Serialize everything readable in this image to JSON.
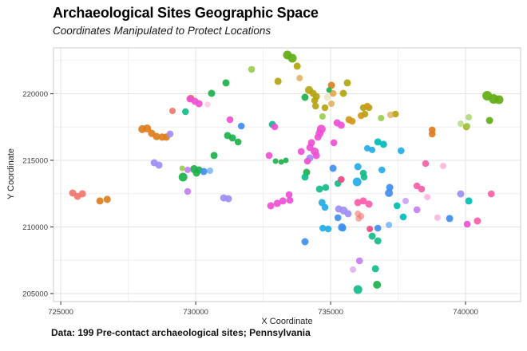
{
  "title": "Archaeological Sites Geographic Space",
  "subtitle": "Coordinates Manipulated to Protect Locations",
  "caption": "Data: 199 Pre-contact archaeological sites; Pennsylvania",
  "chart_data": {
    "type": "scatter",
    "title": "Archaeological Sites Geographic Space",
    "subtitle": "Coordinates Manipulated to Protect Locations",
    "xlabel": "X Coordinate",
    "ylabel": "Y Coordinate",
    "x_ticks": [
      725000,
      730000,
      735000,
      740000
    ],
    "y_ticks": [
      205000,
      210000,
      215000,
      220000
    ],
    "xlim": [
      724730,
      742040
    ],
    "ylim": [
      204400,
      223440
    ],
    "grid": "major-and-minor",
    "legend": "none",
    "point_count_note": "199 sites; overlapping points merge into blobs",
    "colors": {
      "sal": "#F3756C",
      "org": "#DD7E1E",
      "tan": "#DFA851",
      "gld": "#D2971B",
      "crm": "#F0DDB5",
      "olv": "#B3A40F",
      "ylg": "#5FAE12",
      "lgr": "#9ACD4E",
      "grn": "#1EB14B",
      "sea": "#12BC8C",
      "tea": "#00BDB6",
      "cyn": "#22ACE8",
      "blu": "#3F8EF0",
      "lbl": "#7FB9F7",
      "pur": "#9F8DF4",
      "lvi": "#C9A2F5",
      "orc": "#C77DF3",
      "plm": "#DDA5EC",
      "mag": "#EE4FD4",
      "pnk": "#FB5CA8",
      "cri": "#F2487F",
      "lpk": "#F9A8D8"
    },
    "points": [
      [
        728020,
        217340,
        "org",
        5
      ],
      [
        728200,
        217390,
        "org",
        5
      ],
      [
        728370,
        217030,
        "org",
        4.6
      ],
      [
        728550,
        216790,
        "org",
        4.6
      ],
      [
        728760,
        216740,
        "org",
        4.6
      ],
      [
        728910,
        216740,
        "org",
        4.6
      ],
      [
        729820,
        219670,
        "org",
        4.3
      ],
      [
        735030,
        220630,
        "org",
        4.5
      ],
      [
        738760,
        217280,
        "org",
        4.3
      ],
      [
        738760,
        216980,
        "org",
        4.3
      ],
      [
        726450,
        211950,
        "org",
        4.5
      ],
      [
        726720,
        212070,
        "org",
        4.5
      ],
      [
        725440,
        212540,
        "sal",
        4.5
      ],
      [
        725620,
        212300,
        "sal",
        4.5
      ],
      [
        725800,
        212490,
        "sal",
        4.5
      ],
      [
        729140,
        218710,
        "sal",
        4
      ],
      [
        736010,
        210990,
        "sal",
        4,
        0.6
      ],
      [
        736130,
        210810,
        "sal",
        4,
        0.6
      ],
      [
        736040,
        210630,
        "sal",
        4,
        0.6
      ],
      [
        733760,
        222070,
        "olv",
        4.5
      ],
      [
        733050,
        220930,
        "olv",
        4.5
      ],
      [
        734200,
        220270,
        "olv",
        5
      ],
      [
        734350,
        220030,
        "olv",
        4.5
      ],
      [
        734470,
        219790,
        "olv",
        4.5
      ],
      [
        734410,
        219490,
        "olv",
        4.3
      ],
      [
        735470,
        220030,
        "olv",
        4.5
      ],
      [
        735620,
        220810,
        "olv",
        4.5
      ],
      [
        736210,
        218950,
        "olv",
        4.3
      ],
      [
        736270,
        218470,
        "olv",
        4.3
      ],
      [
        734790,
        218950,
        "olv",
        4.3
      ],
      [
        734440,
        219070,
        "olv",
        4.3
      ],
      [
        736420,
        218950,
        "olv",
        4.3
      ],
      [
        737400,
        218470,
        "olv",
        4.3
      ],
      [
        740030,
        217510,
        "olv",
        4.3
      ],
      [
        733850,
        221170,
        "tan",
        4,
        0.8
      ],
      [
        735090,
        220030,
        "tan",
        4.3
      ],
      [
        735030,
        219250,
        "tan",
        4,
        0.8
      ],
      [
        737220,
        218410,
        "tan",
        4.3,
        0.75
      ],
      [
        735680,
        218050,
        "gld",
        4.5
      ],
      [
        735800,
        217930,
        "gld",
        4.3
      ],
      [
        736130,
        218350,
        "gld",
        4.3
      ],
      [
        736360,
        219070,
        "gld",
        4.3
      ],
      [
        734880,
        219730,
        "crm",
        4.3,
        0.75
      ],
      [
        733400,
        222900,
        "ylg",
        5.5
      ],
      [
        733580,
        222660,
        "ylg",
        5.5
      ],
      [
        740800,
        219850,
        "ylg",
        6
      ],
      [
        741040,
        219610,
        "ylg",
        6
      ],
      [
        741240,
        219550,
        "ylg",
        5.5
      ],
      [
        740890,
        217990,
        "ylg",
        4.5
      ],
      [
        732070,
        221830,
        "lgr",
        4.3
      ],
      [
        740120,
        218230,
        "lgr",
        4,
        0.7
      ],
      [
        739820,
        217750,
        "lgr",
        4,
        0.6
      ],
      [
        734700,
        218290,
        "lgr",
        4
      ],
      [
        736870,
        218170,
        "lgr",
        4
      ],
      [
        729500,
        214400,
        "lgr",
        3.5
      ],
      [
        740060,
        217570,
        "lgr",
        4,
        0.8
      ],
      [
        730590,
        220030,
        "grn",
        4.5
      ],
      [
        731120,
        220810,
        "grn",
        4.5
      ],
      [
        734050,
        219730,
        "grn",
        4.5
      ],
      [
        734940,
        220270,
        "grn",
        3.5
      ],
      [
        731180,
        216860,
        "grn",
        4.5
      ],
      [
        731360,
        216680,
        "grn",
        4.5
      ],
      [
        731570,
        216380,
        "grn",
        4.3
      ],
      [
        730680,
        215360,
        "grn",
        4.5
      ],
      [
        732960,
        214940,
        "grn",
        3.5
      ],
      [
        733170,
        214880,
        "grn",
        3.5
      ],
      [
        733340,
        215000,
        "grn",
        3.5
      ],
      [
        734110,
        214100,
        "grn",
        4.5
      ],
      [
        729940,
        214340,
        "grn",
        5
      ],
      [
        730120,
        214280,
        "grn",
        4.5
      ],
      [
        730030,
        214040,
        "grn",
        4.5
      ],
      [
        729530,
        213740,
        "grn",
        5.5
      ],
      [
        736720,
        205660,
        "grn",
        5
      ],
      [
        729620,
        218650,
        "sea",
        4.3
      ],
      [
        732840,
        217690,
        "sea",
        4.5
      ],
      [
        734050,
        213740,
        "sea",
        4.5
      ],
      [
        734590,
        212840,
        "sea",
        4.5
      ],
      [
        734820,
        212960,
        "sea",
        4.3
      ],
      [
        735270,
        213260,
        "sea",
        4.3
      ],
      [
        736540,
        209310,
        "sea",
        4.5
      ],
      [
        736750,
        208950,
        "sea",
        4.5
      ],
      [
        736010,
        205300,
        "sea",
        5.5
      ],
      [
        736660,
        206860,
        "sea",
        4.5
      ],
      [
        736210,
        214040,
        "sea",
        4.3
      ],
      [
        736240,
        213740,
        "sea",
        4.3
      ],
      [
        736750,
        216380,
        "tea",
        4.5
      ],
      [
        736960,
        216200,
        "tea",
        4.5
      ],
      [
        740120,
        211950,
        "tea",
        4.5
      ],
      [
        737460,
        211590,
        "tea",
        4.3
      ],
      [
        737690,
        210750,
        "tea",
        4.3
      ],
      [
        736360,
        215900,
        "cyn",
        4
      ],
      [
        736540,
        215780,
        "cyn",
        4
      ],
      [
        737610,
        215720,
        "cyn",
        4.3
      ],
      [
        736900,
        214280,
        "cyn",
        4.3
      ],
      [
        736010,
        214520,
        "cyn",
        4.5
      ],
      [
        735980,
        213380,
        "cyn",
        5.5
      ],
      [
        734680,
        211830,
        "cyn",
        4.5
      ],
      [
        734790,
        211470,
        "cyn",
        4.3
      ],
      [
        734710,
        209910,
        "cyn",
        4.3
      ],
      [
        734910,
        209850,
        "cyn",
        4.3
      ],
      [
        735450,
        209910,
        "cyn",
        4.3
      ],
      [
        737160,
        210150,
        "lbl",
        4
      ],
      [
        731690,
        217570,
        "blu",
        4.3
      ],
      [
        730300,
        214160,
        "blu",
        4.5
      ],
      [
        730530,
        214220,
        "lbl",
        4
      ],
      [
        735090,
        214400,
        "blu",
        4.5
      ],
      [
        735420,
        209970,
        "blu",
        5
      ],
      [
        736750,
        209910,
        "blu",
        4.3
      ],
      [
        737190,
        212960,
        "blu",
        4.5
      ],
      [
        737160,
        212540,
        "blu",
        5
      ],
      [
        739410,
        210630,
        "blu",
        4.5
      ],
      [
        734050,
        208890,
        "blu",
        4.5
      ],
      [
        735270,
        210690,
        "blu",
        4.3
      ],
      [
        728460,
        214820,
        "pur",
        4.5
      ],
      [
        728640,
        214640,
        "pur",
        4.5
      ],
      [
        729050,
        216980,
        "pur",
        4.3
      ],
      [
        731040,
        212180,
        "pur",
        4.5
      ],
      [
        731210,
        212120,
        "pur",
        4.5
      ],
      [
        734230,
        215180,
        "pur",
        4.5
      ],
      [
        735300,
        211350,
        "pur",
        4.5
      ],
      [
        735480,
        211230,
        "pur",
        5
      ],
      [
        735650,
        210990,
        "pur",
        4.5
      ],
      [
        739820,
        212480,
        "pur",
        4.5
      ],
      [
        737780,
        211950,
        "lvi",
        4
      ],
      [
        738200,
        211290,
        "orc",
        4.3
      ],
      [
        729700,
        214280,
        "orc",
        4
      ],
      [
        729700,
        212660,
        "orc",
        4.3
      ],
      [
        736070,
        207460,
        "orc",
        4.3
      ],
      [
        735830,
        206800,
        "plm",
        4,
        0.8
      ],
      [
        729790,
        219610,
        "mag",
        4.5
      ],
      [
        729970,
        219430,
        "mag",
        4.5
      ],
      [
        730120,
        219250,
        "mag",
        4.5
      ],
      [
        731270,
        218050,
        "mag",
        4.3
      ],
      [
        732930,
        217510,
        "mag",
        4.3
      ],
      [
        732780,
        211590,
        "mag",
        4.5
      ],
      [
        733020,
        211770,
        "mag",
        4.5
      ],
      [
        733230,
        211950,
        "mag",
        4.5
      ],
      [
        733460,
        212420,
        "mag",
        4.3
      ],
      [
        733490,
        212000,
        "mag",
        4.3
      ],
      [
        734140,
        214940,
        "mag",
        4.3
      ],
      [
        734650,
        217340,
        "mag",
        5.5
      ],
      [
        734590,
        217030,
        "mag",
        5
      ],
      [
        734530,
        216740,
        "mag",
        4.5
      ],
      [
        735240,
        217810,
        "mag",
        4.5
      ],
      [
        735390,
        217630,
        "mag",
        4.5
      ],
      [
        735120,
        216320,
        "mag",
        4.3
      ],
      [
        734290,
        216320,
        "mag",
        4.5
      ],
      [
        734230,
        215960,
        "mag",
        4.5
      ],
      [
        734410,
        215660,
        "mag",
        5
      ],
      [
        734470,
        215360,
        "mag",
        4.5
      ],
      [
        733910,
        215660,
        "mag",
        4.3
      ],
      [
        732720,
        215360,
        "mag",
        4.3
      ],
      [
        740060,
        210210,
        "mag",
        4.3
      ],
      [
        736010,
        211830,
        "pnk",
        4.5
      ],
      [
        736210,
        211950,
        "pnk",
        4.5
      ],
      [
        736420,
        211710,
        "pnk",
        4.5
      ],
      [
        738520,
        214760,
        "pnk",
        4.3
      ],
      [
        738200,
        213080,
        "pnk",
        4.3
      ],
      [
        738370,
        212840,
        "pnk",
        4.3
      ],
      [
        740440,
        210450,
        "pnk",
        4.5
      ],
      [
        740950,
        212480,
        "pnk",
        4.3
      ],
      [
        736450,
        209850,
        "cri",
        4
      ],
      [
        735390,
        213560,
        "cri",
        4.3
      ],
      [
        739170,
        214580,
        "lpk",
        4,
        0.75
      ],
      [
        738580,
        212240,
        "lpk",
        4,
        0.75
      ],
      [
        738960,
        210690,
        "lpk",
        4,
        0.75
      ],
      [
        730440,
        219190,
        "lpk",
        3.8,
        0.55
      ]
    ]
  }
}
